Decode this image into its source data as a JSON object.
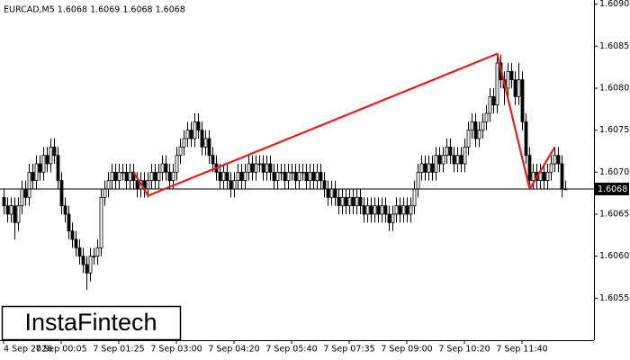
{
  "chart_data": {
    "type": "candlestick",
    "header": "EURCAD,M5  1.6068 1.6069 1.6068 1.6068",
    "logo": "InstaFintech",
    "categories": [
      "4 Sep 2026",
      null,
      null,
      null,
      null,
      null,
      null,
      null,
      null,
      null,
      null,
      null,
      null,
      null,
      null,
      null,
      "7 Sep 00:05",
      null,
      null,
      null,
      null,
      null,
      null,
      null,
      null,
      null,
      null,
      null,
      null,
      null,
      null,
      null,
      "7 Sep 01:25",
      null,
      null,
      null,
      null,
      null,
      null,
      null,
      null,
      null,
      null,
      null,
      null,
      null,
      null,
      null,
      "7 Sep 03:00",
      null,
      null,
      null,
      null,
      null,
      null,
      null,
      null,
      null,
      null,
      null,
      null,
      null,
      null,
      null,
      "7 Sep 04:20",
      null,
      null,
      null,
      null,
      null,
      null,
      null,
      null,
      null,
      null,
      null,
      null,
      null,
      null,
      null,
      "7 Sep 05:40",
      null,
      null,
      null,
      null,
      null,
      null,
      null,
      null,
      null,
      null,
      null,
      null,
      null,
      null,
      null,
      "7 Sep 07:35",
      null,
      null,
      null,
      null,
      null,
      null,
      null,
      null,
      null,
      null,
      null,
      null,
      null,
      null,
      null,
      "7 Sep 09:00",
      null,
      null,
      null,
      null,
      null,
      null,
      null,
      null,
      null,
      null,
      null,
      null,
      null,
      null,
      null,
      "7 Sep 10:20",
      null,
      null,
      null,
      null,
      null,
      null,
      null,
      null,
      null,
      null,
      null,
      null,
      null,
      null,
      null,
      "7 Sep 11:40",
      null,
      null,
      null,
      null,
      null,
      null,
      null,
      null,
      null,
      null,
      null,
      null
    ],
    "open": [
      1.6067,
      1.6066,
      1.6065,
      1.6066,
      1.6064,
      1.6066,
      1.6068,
      1.6067,
      1.607,
      1.6069,
      1.6071,
      1.607,
      1.6072,
      1.6071,
      1.6073,
      1.6072,
      1.6069,
      1.6066,
      1.6065,
      1.6063,
      1.6062,
      1.6061,
      1.606,
      1.6059,
      1.6058,
      1.606,
      1.606,
      1.6061,
      1.6067,
      1.6068,
      1.6069,
      1.607,
      1.6069,
      1.607,
      1.607,
      1.6069,
      1.607,
      1.6069,
      1.6068,
      1.6069,
      1.6068,
      1.6069,
      1.607,
      1.6069,
      1.607,
      1.6071,
      1.607,
      1.6069,
      1.607,
      1.6072,
      1.6073,
      1.6074,
      1.6075,
      1.6074,
      1.6076,
      1.6075,
      1.6073,
      1.6074,
      1.6072,
      1.6071,
      1.607,
      1.6069,
      1.607,
      1.6069,
      1.6068,
      1.6069,
      1.607,
      1.6069,
      1.607,
      1.6071,
      1.607,
      1.6071,
      1.6071,
      1.607,
      1.6071,
      1.607,
      1.6069,
      1.607,
      1.607,
      1.6069,
      1.607,
      1.607,
      1.6069,
      1.607,
      1.607,
      1.6069,
      1.607,
      1.6069,
      1.607,
      1.6069,
      1.6068,
      1.6067,
      1.6068,
      1.6067,
      1.6066,
      1.6067,
      1.6066,
      1.6067,
      1.6066,
      1.6067,
      1.6066,
      1.6065,
      1.6066,
      1.6065,
      1.6066,
      1.6065,
      1.6066,
      1.6065,
      1.6064,
      1.6065,
      1.6066,
      1.6065,
      1.6066,
      1.6065,
      1.6066,
      1.6068,
      1.607,
      1.6071,
      1.607,
      1.6071,
      1.607,
      1.6072,
      1.6071,
      1.6072,
      1.6073,
      1.6072,
      1.6071,
      1.6072,
      1.6071,
      1.6073,
      1.6075,
      1.6076,
      1.6074,
      1.6075,
      1.6076,
      1.6077,
      1.6079,
      1.6078,
      1.6083,
      1.6081,
      1.608,
      1.6082,
      1.6081,
      1.6079,
      1.6081,
      1.6076,
      1.6072,
      1.6069,
      1.607,
      1.6069,
      1.607,
      1.6069,
      1.607,
      1.6071,
      1.6072,
      1.6071,
      1.6068
    ],
    "high": [
      1.6068,
      1.6067,
      1.6067,
      1.6067,
      1.6067,
      1.6069,
      1.6069,
      1.6071,
      1.6071,
      1.6072,
      1.6072,
      1.6073,
      1.6073,
      1.6074,
      1.6074,
      1.6073,
      1.607,
      1.6067,
      1.6066,
      1.6064,
      1.6063,
      1.6062,
      1.6061,
      1.606,
      1.6061,
      1.6061,
      1.6062,
      1.6068,
      1.6069,
      1.607,
      1.6071,
      1.6071,
      1.6071,
      1.6071,
      1.6071,
      1.6071,
      1.6071,
      1.607,
      1.607,
      1.607,
      1.607,
      1.6071,
      1.6071,
      1.6071,
      1.6072,
      1.6072,
      1.6071,
      1.6071,
      1.6073,
      1.6074,
      1.6075,
      1.6076,
      1.6076,
      1.6077,
      1.6077,
      1.6076,
      1.6075,
      1.6075,
      1.6073,
      1.6072,
      1.6071,
      1.6071,
      1.6071,
      1.607,
      1.607,
      1.6071,
      1.6071,
      1.6071,
      1.6072,
      1.6072,
      1.6072,
      1.6072,
      1.6072,
      1.6072,
      1.6072,
      1.6071,
      1.6071,
      1.6071,
      1.6071,
      1.6071,
      1.6071,
      1.6071,
      1.6071,
      1.6071,
      1.6071,
      1.6071,
      1.6071,
      1.6071,
      1.6071,
      1.607,
      1.6069,
      1.6069,
      1.6069,
      1.6068,
      1.6068,
      1.6068,
      1.6068,
      1.6068,
      1.6068,
      1.6068,
      1.6067,
      1.6067,
      1.6067,
      1.6067,
      1.6067,
      1.6067,
      1.6067,
      1.6066,
      1.6066,
      1.6067,
      1.6067,
      1.6067,
      1.6067,
      1.6067,
      1.6069,
      1.6071,
      1.6072,
      1.6072,
      1.6072,
      1.6072,
      1.6073,
      1.6073,
      1.6073,
      1.6074,
      1.6074,
      1.6073,
      1.6073,
      1.6073,
      1.6074,
      1.6076,
      1.6077,
      1.6077,
      1.6076,
      1.6077,
      1.6078,
      1.608,
      1.608,
      1.6084,
      1.6084,
      1.6082,
      1.6083,
      1.6083,
      1.6082,
      1.6083,
      1.6082,
      1.6077,
      1.6073,
      1.6071,
      1.6071,
      1.6071,
      1.6071,
      1.6071,
      1.6072,
      1.6073,
      1.6073,
      1.6072,
      1.6069
    ],
    "low": [
      1.6065,
      1.6064,
      1.6064,
      1.6062,
      1.6063,
      1.6065,
      1.6066,
      1.6066,
      1.6068,
      1.6068,
      1.6069,
      1.6069,
      1.607,
      1.607,
      1.6071,
      1.6068,
      1.6065,
      1.6064,
      1.6062,
      1.6061,
      1.606,
      1.6059,
      1.6058,
      1.6056,
      1.6057,
      1.6059,
      1.6059,
      1.606,
      1.6066,
      1.6067,
      1.6068,
      1.6068,
      1.6068,
      1.6069,
      1.6068,
      1.6068,
      1.6068,
      1.6067,
      1.6067,
      1.6067,
      1.6067,
      1.6068,
      1.6068,
      1.6068,
      1.6069,
      1.6069,
      1.6068,
      1.6068,
      1.6069,
      1.6071,
      1.6072,
      1.6073,
      1.6073,
      1.6073,
      1.6074,
      1.6072,
      1.6072,
      1.6071,
      1.607,
      1.6069,
      1.6068,
      1.6068,
      1.6068,
      1.6067,
      1.6067,
      1.6068,
      1.6068,
      1.6068,
      1.6069,
      1.6069,
      1.6069,
      1.607,
      1.6069,
      1.6069,
      1.6069,
      1.6068,
      1.6068,
      1.6069,
      1.6068,
      1.6068,
      1.6069,
      1.6068,
      1.6068,
      1.6069,
      1.6068,
      1.6068,
      1.6068,
      1.6068,
      1.6068,
      1.6067,
      1.6066,
      1.6066,
      1.6066,
      1.6065,
      1.6065,
      1.6065,
      1.6065,
      1.6065,
      1.6065,
      1.6065,
      1.6064,
      1.6064,
      1.6064,
      1.6064,
      1.6064,
      1.6064,
      1.6064,
      1.6063,
      1.6063,
      1.6064,
      1.6064,
      1.6064,
      1.6064,
      1.6064,
      1.6065,
      1.6067,
      1.6069,
      1.6069,
      1.6069,
      1.6069,
      1.6069,
      1.607,
      1.607,
      1.6071,
      1.6071,
      1.607,
      1.607,
      1.607,
      1.607,
      1.6072,
      1.6074,
      1.6073,
      1.6073,
      1.6074,
      1.6075,
      1.6076,
      1.6077,
      1.6077,
      1.608,
      1.6078,
      1.6079,
      1.608,
      1.6078,
      1.6078,
      1.6075,
      1.6071,
      1.6068,
      1.6068,
      1.6068,
      1.6068,
      1.6068,
      1.6068,
      1.6069,
      1.607,
      1.607,
      1.6067,
      1.6068
    ],
    "close": [
      1.6066,
      1.6065,
      1.6066,
      1.6064,
      1.6066,
      1.6068,
      1.6067,
      1.607,
      1.6069,
      1.6071,
      1.607,
      1.6072,
      1.6071,
      1.6073,
      1.6072,
      1.6069,
      1.6066,
      1.6065,
      1.6063,
      1.6062,
      1.6061,
      1.606,
      1.6059,
      1.6058,
      1.606,
      1.606,
      1.6061,
      1.6067,
      1.6068,
      1.6069,
      1.607,
      1.6069,
      1.607,
      1.607,
      1.6069,
      1.607,
      1.6069,
      1.6068,
      1.6069,
      1.6068,
      1.6069,
      1.607,
      1.6069,
      1.607,
      1.6071,
      1.607,
      1.6069,
      1.607,
      1.6072,
      1.6073,
      1.6074,
      1.6075,
      1.6074,
      1.6076,
      1.6075,
      1.6073,
      1.6074,
      1.6072,
      1.6071,
      1.607,
      1.6069,
      1.607,
      1.6069,
      1.6068,
      1.6069,
      1.607,
      1.6069,
      1.607,
      1.6071,
      1.607,
      1.6071,
      1.6071,
      1.607,
      1.6071,
      1.607,
      1.6069,
      1.607,
      1.607,
      1.6069,
      1.607,
      1.607,
      1.6069,
      1.607,
      1.607,
      1.6069,
      1.607,
      1.6069,
      1.607,
      1.6069,
      1.6068,
      1.6067,
      1.6068,
      1.6067,
      1.6066,
      1.6067,
      1.6066,
      1.6067,
      1.6066,
      1.6067,
      1.6066,
      1.6065,
      1.6066,
      1.6065,
      1.6066,
      1.6065,
      1.6066,
      1.6065,
      1.6064,
      1.6065,
      1.6066,
      1.6065,
      1.6066,
      1.6065,
      1.6066,
      1.6068,
      1.607,
      1.6071,
      1.607,
      1.6071,
      1.607,
      1.6072,
      1.6071,
      1.6072,
      1.6073,
      1.6072,
      1.6071,
      1.6072,
      1.6071,
      1.6073,
      1.6075,
      1.6076,
      1.6074,
      1.6075,
      1.6076,
      1.6077,
      1.6079,
      1.6078,
      1.6083,
      1.6081,
      1.608,
      1.6082,
      1.6081,
      1.6079,
      1.6081,
      1.6076,
      1.6072,
      1.6069,
      1.607,
      1.6069,
      1.607,
      1.6069,
      1.607,
      1.6071,
      1.6072,
      1.6071,
      1.6068,
      1.6068
    ],
    "ylim": [
      1.605,
      1.60905
    ],
    "yticks": [
      {
        "value": 1.609,
        "label": "1.6090"
      },
      1.6085,
      {
        "value": 1.608,
        "label": "1.6080"
      },
      1.6075,
      {
        "value": 1.607,
        "label": "1.6070"
      },
      1.6065,
      {
        "value": 1.606,
        "label": "1.6060"
      },
      1.6055
    ],
    "current_price": 1.6068,
    "pattern": {
      "color": "#e41e1e",
      "x": [
        36,
        40,
        137,
        146,
        153
      ],
      "y": [
        1.607,
        1.60672,
        1.60841,
        1.6068,
        1.6073
      ]
    }
  }
}
